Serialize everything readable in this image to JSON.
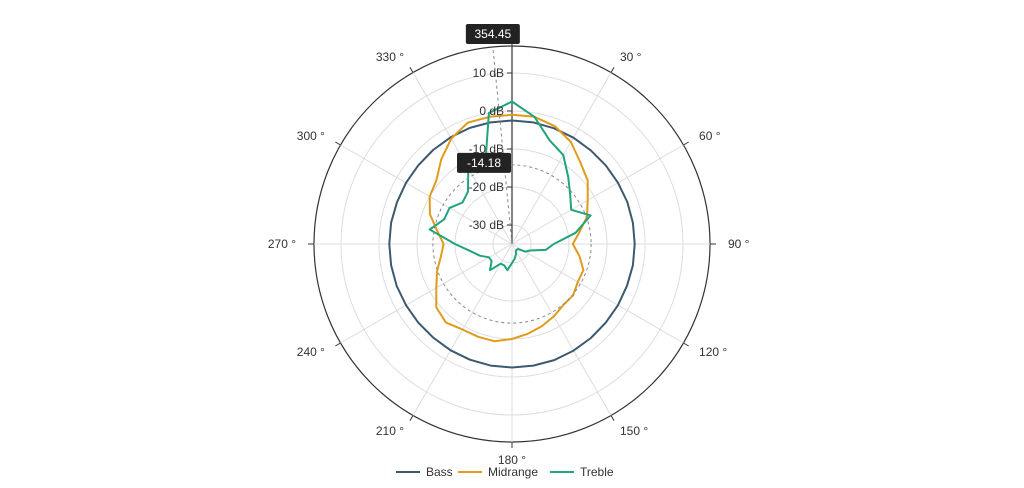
{
  "chart_data": {
    "type": "line",
    "subtype": "polar",
    "angle_unit_label": "°",
    "radial_axis": {
      "min": -35,
      "max": 15,
      "tick_values": [
        10,
        0,
        -10,
        -20,
        -30
      ],
      "tick_labels": [
        "10 dB",
        "0 dB",
        "-10 dB",
        "-20 dB",
        "-30 dB"
      ],
      "grid": true
    },
    "angular_axis": {
      "tick_values": [
        0,
        30,
        60,
        90,
        120,
        150,
        180,
        210,
        240,
        270,
        300,
        330
      ],
      "tick_labels": [
        "",
        "30 °",
        "60 °",
        "90 °",
        "120 °",
        "150 °",
        "180 °",
        "210 °",
        "240 °",
        "270 °",
        "300 °",
        "330 °"
      ],
      "direction": "clockwise",
      "zero": "top",
      "grid": true
    },
    "legend": {
      "position": "bottom"
    },
    "series": [
      {
        "name": "Bass",
        "color": "#3b5a6f",
        "angles": [
          0,
          10,
          20,
          30,
          40,
          50,
          60,
          70,
          80,
          90,
          100,
          110,
          120,
          130,
          140,
          150,
          160,
          170,
          180,
          190,
          200,
          210,
          220,
          230,
          240,
          250,
          260,
          270,
          280,
          290,
          300,
          310,
          320,
          330,
          340,
          350
        ],
        "values": [
          -2.5,
          -2.5,
          -2.6,
          -2.7,
          -2.8,
          -2.8,
          -2.8,
          -2.7,
          -2.7,
          -2.7,
          -2.7,
          -2.8,
          -2.8,
          -2.8,
          -2.7,
          -2.6,
          -2.5,
          -2.5,
          -2.5,
          -2.5,
          -2.6,
          -2.7,
          -2.8,
          -2.8,
          -2.8,
          -2.7,
          -2.7,
          -2.7,
          -2.7,
          -2.8,
          -2.8,
          -2.8,
          -2.7,
          -2.6,
          -2.5,
          -2.5
        ]
      },
      {
        "name": "Midrange",
        "color": "#e09b1c",
        "angles": [
          0,
          10,
          20,
          30,
          40,
          50,
          60,
          70,
          80,
          90,
          100,
          110,
          120,
          130,
          140,
          150,
          160,
          170,
          180,
          190,
          200,
          210,
          220,
          230,
          240,
          250,
          260,
          270,
          280,
          290,
          300,
          310,
          320,
          330,
          340,
          350
        ],
        "values": [
          -1,
          -1,
          -2,
          -4,
          -7,
          -9,
          -12,
          -14,
          -17,
          -19,
          -17,
          -15,
          -15,
          -14,
          -14,
          -13,
          -12,
          -11,
          -10,
          -9,
          -9,
          -9,
          -8,
          -9,
          -12,
          -14,
          -16,
          -17,
          -15,
          -12,
          -10,
          -9,
          -6,
          -3,
          -1,
          -1
        ]
      },
      {
        "name": "Treble",
        "color": "#20a37f",
        "angles": [
          0,
          10,
          20,
          30,
          40,
          50,
          60,
          70,
          80,
          90,
          100,
          110,
          120,
          130,
          140,
          150,
          160,
          170,
          180,
          190,
          200,
          210,
          220,
          230,
          240,
          250,
          260,
          270,
          280,
          290,
          300,
          310,
          320,
          330,
          340,
          350
        ],
        "values": [
          2.5,
          -1,
          -6,
          -8,
          -12,
          -15,
          -17,
          -13,
          -18,
          -24,
          -26,
          -30,
          -31,
          -33,
          -33,
          -33,
          -32,
          -31,
          -30,
          -28,
          -29,
          -29,
          -26,
          -28,
          -28,
          -26,
          -24,
          -20,
          -13,
          -16,
          -16,
          -18,
          -17,
          -12,
          -14.18,
          0
        ]
      }
    ],
    "tooltips": [
      {
        "text": "354.45"
      },
      {
        "text": "-14.18"
      }
    ]
  }
}
